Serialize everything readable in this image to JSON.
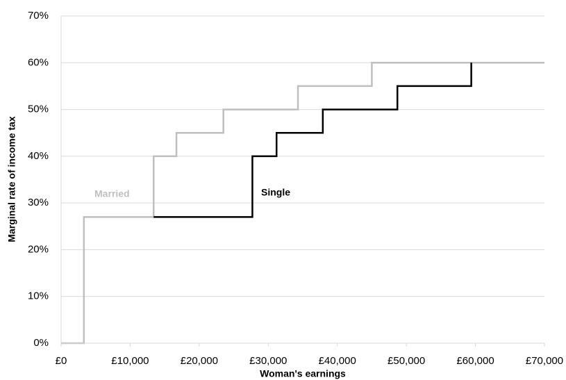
{
  "chart_data": {
    "type": "line",
    "x_label": "Woman's earnings",
    "y_label": "Marginal rate of income tax",
    "xlim": [
      0,
      70000
    ],
    "xticks": [
      {
        "value": 0,
        "label": "£0"
      },
      {
        "value": 10000,
        "label": "£10,000"
      },
      {
        "value": 20000,
        "label": "£20,000"
      },
      {
        "value": 30000,
        "label": "£30,000"
      },
      {
        "value": 40000,
        "label": "£40,000"
      },
      {
        "value": 50000,
        "label": "£50,000"
      },
      {
        "value": 60000,
        "label": "£60,000"
      },
      {
        "value": 70000,
        "label": "£70,000"
      }
    ],
    "ylim": [
      0,
      70
    ],
    "yticks": [
      {
        "value": 0,
        "label": "0%"
      },
      {
        "value": 10,
        "label": "10%"
      },
      {
        "value": 20,
        "label": "20%"
      },
      {
        "value": 30,
        "label": "30%"
      },
      {
        "value": 40,
        "label": "40%"
      },
      {
        "value": 50,
        "label": "50%"
      },
      {
        "value": 60,
        "label": "60%"
      },
      {
        "value": 70,
        "label": "70%"
      }
    ],
    "grid": true,
    "series": [
      {
        "name": "Married",
        "color": "#bfbfbf",
        "x": [
          0,
          3300,
          3300,
          13400,
          13400,
          16700,
          16700,
          23500,
          23500,
          34300,
          34300,
          45000,
          45000,
          70000
        ],
        "values": [
          0,
          0,
          27,
          27,
          40,
          40,
          45,
          45,
          50,
          50,
          55,
          55,
          60,
          60
        ]
      },
      {
        "name": "Single",
        "color": "#000000",
        "x": [
          13400,
          27700,
          27700,
          31200,
          31200,
          37900,
          37900,
          48700,
          48700,
          59400,
          59400
        ],
        "values": [
          27,
          27,
          40,
          40,
          45,
          45,
          50,
          50,
          55,
          55,
          60
        ]
      }
    ]
  }
}
